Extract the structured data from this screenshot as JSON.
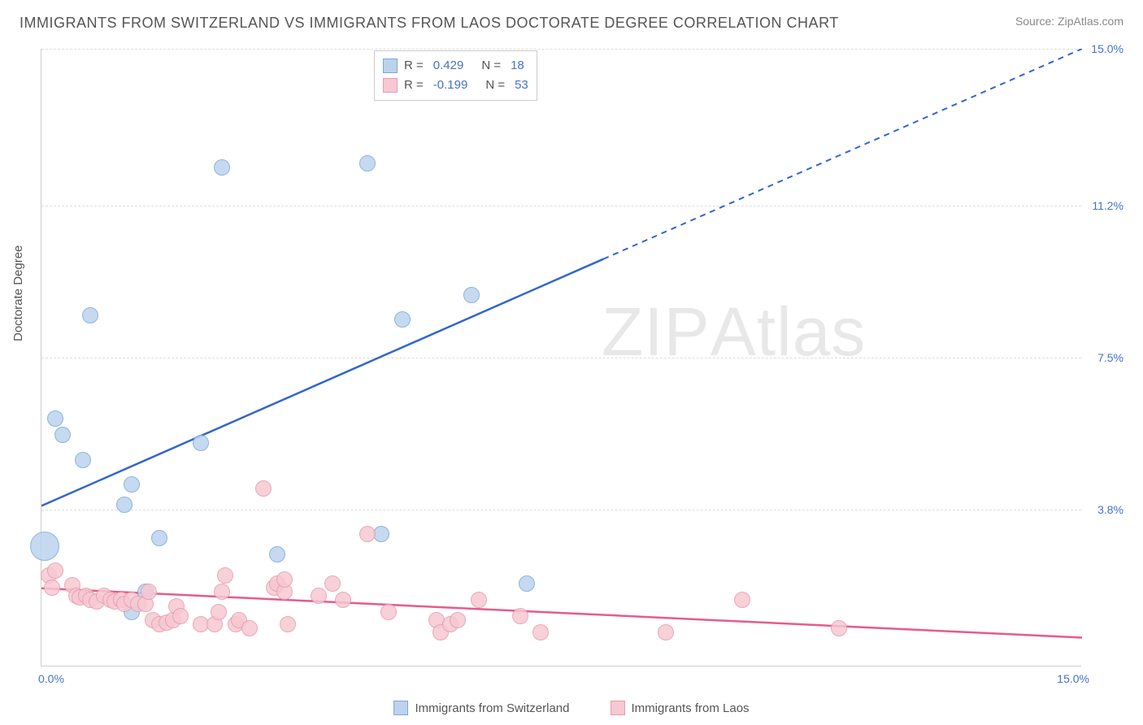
{
  "title": "IMMIGRANTS FROM SWITZERLAND VS IMMIGRANTS FROM LAOS DOCTORATE DEGREE CORRELATION CHART",
  "source_label": "Source: ZipAtlas.com",
  "watermark_main": "ZIP",
  "watermark_sub": "Atlas",
  "chart": {
    "type": "scatter",
    "ylabel": "Doctorate Degree",
    "xlim": [
      0.0,
      15.0
    ],
    "ylim": [
      0.0,
      15.0
    ],
    "x_min_label": "0.0%",
    "x_max_label": "15.0%",
    "y_gridlines": [
      3.8,
      7.5,
      11.2,
      15.0
    ],
    "y_grid_labels": [
      "3.8%",
      "7.5%",
      "11.2%",
      "15.0%"
    ],
    "background_color": "#ffffff",
    "grid_color": "#dddddd",
    "axis_color": "#cccccc",
    "tick_label_color": "#4472c4",
    "tick_fontsize": 14,
    "title_fontsize": 18,
    "title_color": "#555555",
    "series": [
      {
        "name": "Immigrants from Switzerland",
        "fill_color": "#bcd3ee",
        "stroke_color": "#7ca8d8",
        "line_color": "#3366cc",
        "R": "0.429",
        "N": "18",
        "trend": {
          "x1": 0.0,
          "y1": 3.9,
          "x2": 15.0,
          "y2": 15.0,
          "dashed_after_x": 8.1
        },
        "marker_radius": 10,
        "points": [
          {
            "x": 0.05,
            "y": 2.9,
            "r": 18
          },
          {
            "x": 0.2,
            "y": 6.0
          },
          {
            "x": 0.3,
            "y": 5.6
          },
          {
            "x": 0.6,
            "y": 5.0
          },
          {
            "x": 0.7,
            "y": 8.5
          },
          {
            "x": 1.2,
            "y": 3.9
          },
          {
            "x": 1.3,
            "y": 4.4
          },
          {
            "x": 1.5,
            "y": 1.8
          },
          {
            "x": 1.7,
            "y": 3.1
          },
          {
            "x": 1.3,
            "y": 1.3
          },
          {
            "x": 2.3,
            "y": 5.4
          },
          {
            "x": 2.6,
            "y": 12.1
          },
          {
            "x": 3.4,
            "y": 2.7
          },
          {
            "x": 4.7,
            "y": 12.2
          },
          {
            "x": 4.9,
            "y": 3.2
          },
          {
            "x": 5.2,
            "y": 8.4
          },
          {
            "x": 6.2,
            "y": 9.0
          },
          {
            "x": 7.0,
            "y": 2.0
          }
        ]
      },
      {
        "name": "Immigrants from Laos",
        "fill_color": "#f6c8d2",
        "stroke_color": "#e79bb0",
        "line_color": "#e75a8d",
        "R": "-0.199",
        "N": "53",
        "trend": {
          "x1": 0.0,
          "y1": 1.9,
          "x2": 15.0,
          "y2": 0.7,
          "dashed_after_x": 15.0
        },
        "marker_radius": 10,
        "points": [
          {
            "x": 0.1,
            "y": 2.2
          },
          {
            "x": 0.15,
            "y": 1.9
          },
          {
            "x": 0.2,
            "y": 2.3
          },
          {
            "x": 0.45,
            "y": 1.95
          },
          {
            "x": 0.5,
            "y": 1.7
          },
          {
            "x": 0.55,
            "y": 1.65
          },
          {
            "x": 0.65,
            "y": 1.7
          },
          {
            "x": 0.7,
            "y": 1.6
          },
          {
            "x": 0.8,
            "y": 1.55
          },
          {
            "x": 0.9,
            "y": 1.7
          },
          {
            "x": 1.0,
            "y": 1.6
          },
          {
            "x": 1.05,
            "y": 1.55
          },
          {
            "x": 1.15,
            "y": 1.6
          },
          {
            "x": 1.2,
            "y": 1.5
          },
          {
            "x": 1.3,
            "y": 1.6
          },
          {
            "x": 1.4,
            "y": 1.5
          },
          {
            "x": 1.5,
            "y": 1.5
          },
          {
            "x": 1.6,
            "y": 1.1
          },
          {
            "x": 1.55,
            "y": 1.8
          },
          {
            "x": 1.7,
            "y": 1.0
          },
          {
            "x": 1.8,
            "y": 1.05
          },
          {
            "x": 1.9,
            "y": 1.1
          },
          {
            "x": 1.95,
            "y": 1.45
          },
          {
            "x": 2.0,
            "y": 1.2
          },
          {
            "x": 2.3,
            "y": 1.0
          },
          {
            "x": 2.5,
            "y": 1.0
          },
          {
            "x": 2.55,
            "y": 1.3
          },
          {
            "x": 2.6,
            "y": 1.8
          },
          {
            "x": 2.65,
            "y": 2.2
          },
          {
            "x": 2.8,
            "y": 1.0
          },
          {
            "x": 2.85,
            "y": 1.1
          },
          {
            "x": 3.0,
            "y": 0.9
          },
          {
            "x": 3.2,
            "y": 4.3
          },
          {
            "x": 3.35,
            "y": 1.9
          },
          {
            "x": 3.4,
            "y": 2.0
          },
          {
            "x": 3.5,
            "y": 1.8
          },
          {
            "x": 3.5,
            "y": 2.1
          },
          {
            "x": 3.55,
            "y": 1.0
          },
          {
            "x": 4.0,
            "y": 1.7
          },
          {
            "x": 4.2,
            "y": 2.0
          },
          {
            "x": 4.35,
            "y": 1.6
          },
          {
            "x": 4.7,
            "y": 3.2
          },
          {
            "x": 5.0,
            "y": 1.3
          },
          {
            "x": 5.7,
            "y": 1.1
          },
          {
            "x": 5.75,
            "y": 0.8
          },
          {
            "x": 5.9,
            "y": 1.0
          },
          {
            "x": 6.0,
            "y": 1.1
          },
          {
            "x": 6.3,
            "y": 1.6
          },
          {
            "x": 6.9,
            "y": 1.2
          },
          {
            "x": 7.2,
            "y": 0.8
          },
          {
            "x": 9.0,
            "y": 0.8
          },
          {
            "x": 10.1,
            "y": 1.6
          },
          {
            "x": 11.5,
            "y": 0.9
          }
        ]
      }
    ],
    "bottom_legend": [
      {
        "swatch_fill": "#bcd3ee",
        "swatch_stroke": "#7ca8d8",
        "label": "Immigrants from Switzerland"
      },
      {
        "swatch_fill": "#f6c8d2",
        "swatch_stroke": "#e79bb0",
        "label": "Immigrants from Laos"
      }
    ]
  }
}
